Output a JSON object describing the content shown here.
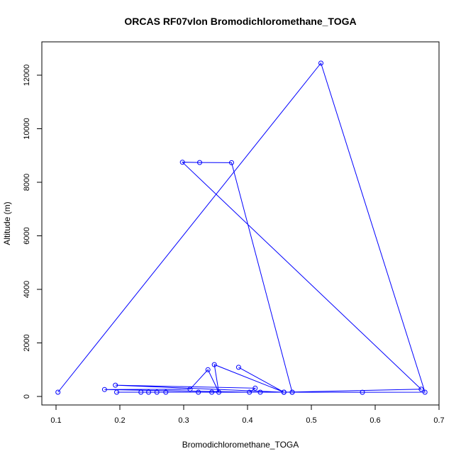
{
  "chart_data": {
    "type": "line",
    "title": "ORCAS RF07vlon Bromodichloromethane_TOGA",
    "xlabel": "Bromodichloromethane_TOGA",
    "ylabel": "Altitude (m)",
    "xlim": [
      0.1,
      0.7
    ],
    "ylim": [
      0,
      12000
    ],
    "xticks": [
      0.1,
      0.2,
      0.3,
      0.4,
      0.5,
      0.6,
      0.7
    ],
    "xtick_labels": [
      "0.1",
      "0.2",
      "0.3",
      "0.4",
      "0.5",
      "0.6",
      "0.7"
    ],
    "yticks": [
      0,
      2000,
      4000,
      6000,
      8000,
      10000,
      12000
    ],
    "ytick_labels": [
      "0",
      "2000",
      "4000",
      "6000",
      "8000",
      "10000",
      "12000"
    ],
    "series": [
      {
        "color": "#0000ff",
        "marker": "open-circle",
        "points": [
          {
            "x": 0.103,
            "y": 160
          },
          {
            "x": 0.515,
            "y": 12450
          },
          {
            "x": 0.678,
            "y": 160
          },
          {
            "x": 0.58,
            "y": 155
          },
          {
            "x": 0.47,
            "y": 160
          },
          {
            "x": 0.375,
            "y": 8730
          },
          {
            "x": 0.325,
            "y": 8740
          },
          {
            "x": 0.298,
            "y": 8750
          },
          {
            "x": 0.672,
            "y": 270
          },
          {
            "x": 0.457,
            "y": 160
          },
          {
            "x": 0.348,
            "y": 1190
          },
          {
            "x": 0.355,
            "y": 160
          },
          {
            "x": 0.338,
            "y": 1000
          },
          {
            "x": 0.31,
            "y": 270
          },
          {
            "x": 0.176,
            "y": 260
          },
          {
            "x": 0.403,
            "y": 160
          },
          {
            "x": 0.412,
            "y": 310
          },
          {
            "x": 0.193,
            "y": 420
          },
          {
            "x": 0.457,
            "y": 160
          },
          {
            "x": 0.386,
            "y": 1090
          },
          {
            "x": 0.457,
            "y": 160
          },
          {
            "x": 0.42,
            "y": 160
          },
          {
            "x": 0.344,
            "y": 160
          },
          {
            "x": 0.323,
            "y": 160
          },
          {
            "x": 0.272,
            "y": 160
          },
          {
            "x": 0.258,
            "y": 160
          },
          {
            "x": 0.245,
            "y": 160
          },
          {
            "x": 0.233,
            "y": 160
          },
          {
            "x": 0.195,
            "y": 160
          },
          {
            "x": 0.47,
            "y": 160
          }
        ]
      }
    ]
  }
}
